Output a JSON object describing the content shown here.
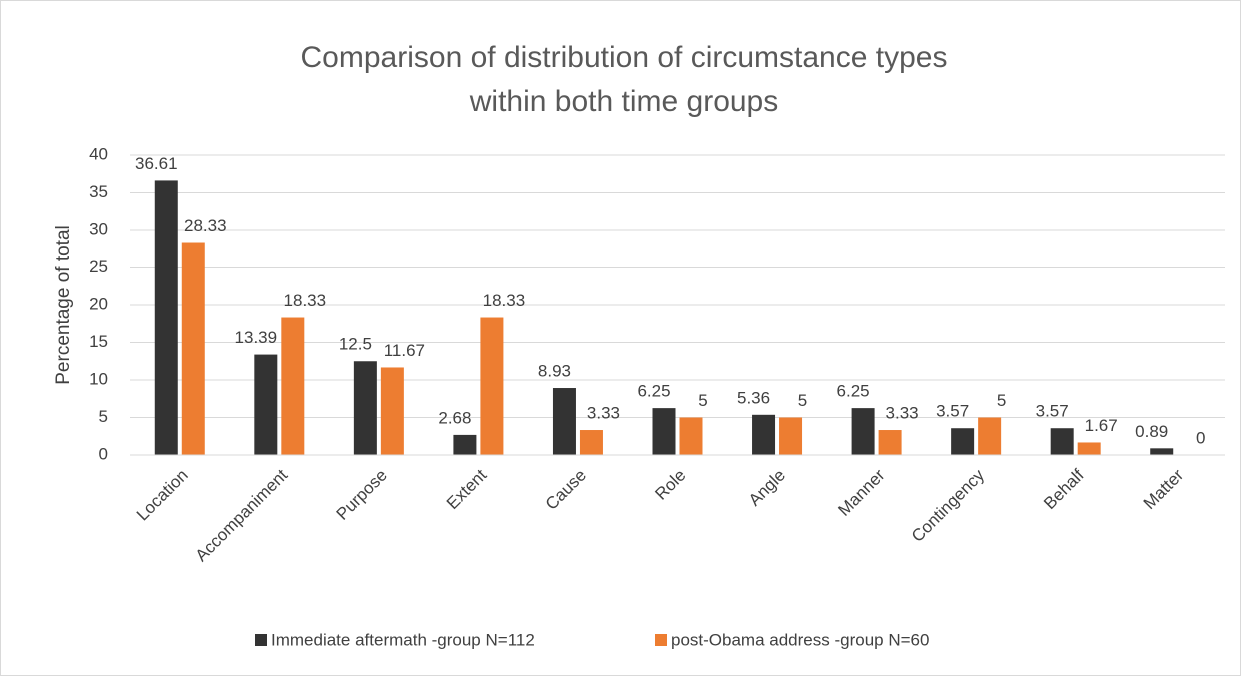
{
  "chart_data": {
    "type": "bar",
    "title": "Comparison of distribution of circumstance types within both time groups",
    "y_label": "Percentage of total",
    "categories": [
      "Location",
      "Accompaniment",
      "Purpose",
      "Extent",
      "Cause",
      "Role",
      "Angle",
      "Manner",
      "Contingency",
      "Behalf",
      "Matter"
    ],
    "series": [
      {
        "name": "Immediate aftermath -group N=112",
        "color": "#333333",
        "values": [
          36.61,
          13.39,
          12.5,
          2.68,
          8.93,
          6.25,
          5.36,
          6.25,
          3.57,
          3.57,
          0.89
        ]
      },
      {
        "name": "post-Obama address -group N=60",
        "color": "#ed7d31",
        "values": [
          28.33,
          18.33,
          11.67,
          18.33,
          3.33,
          5,
          5,
          3.33,
          5,
          1.67,
          0
        ]
      }
    ],
    "ylim": [
      0,
      40
    ],
    "yticks": [
      0,
      5,
      10,
      15,
      20,
      25,
      30,
      35,
      40
    ],
    "grid": true,
    "legend": "bottom"
  }
}
